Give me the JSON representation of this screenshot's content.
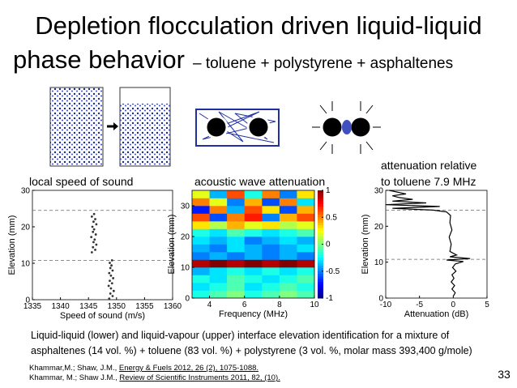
{
  "header": {
    "title_line1": "Depletion flocculation driven liquid-liquid",
    "title_line2": "phase behavior",
    "subtitle": "– toluene + polystyrene + asphaltenes"
  },
  "captions": {
    "left": "local speed of sound",
    "middle": "acoustic wave attenuation",
    "right_line1": "attenuation relative",
    "right_line2": "to toluene 7.9 MHz"
  },
  "chart_data": [
    {
      "type": "scatter",
      "xlabel": "Speed of sound (m/s)",
      "ylabel": "Elevation (mm)",
      "color": "#333333",
      "x": [
        1345.6,
        1346.2,
        1345.8,
        1346.4,
        1345.9,
        1346.1,
        1345.5,
        1346.3,
        1345.8,
        1346.0,
        1345.7,
        1346.4,
        1345.9,
        1346.2,
        1345.6,
        1346.0,
        1348.7,
        1349.3,
        1348.9,
        1349.5,
        1349.0,
        1348.6,
        1349.2,
        1348.8,
        1349.4,
        1349.0,
        1348.7,
        1349.3,
        1348.9,
        1349.1,
        1348.8,
        1349.2
      ],
      "y": [
        13.0,
        13.7,
        14.4,
        15.1,
        15.8,
        16.5,
        17.2,
        17.9,
        18.6,
        19.3,
        20.0,
        20.7,
        21.4,
        22.1,
        22.8,
        23.5,
        0.3,
        1.0,
        1.7,
        2.4,
        3.1,
        3.8,
        4.5,
        5.2,
        5.9,
        6.6,
        7.3,
        8.0,
        8.7,
        9.4,
        10.1,
        10.8
      ],
      "hlines": [
        24.5,
        10.8
      ],
      "xlim": [
        1335,
        1360
      ],
      "ylim": [
        0,
        30
      ],
      "xticks": [
        1335,
        1340,
        1345,
        1350,
        1355,
        1360
      ],
      "yticks": [
        0,
        10,
        20,
        30
      ]
    },
    {
      "type": "heatmap",
      "xlabel": "Frequency (MHz)",
      "ylabel": "Elevation (mm)",
      "x_bins": [
        3,
        4,
        5,
        6,
        7,
        8,
        9,
        10
      ],
      "y_bins": [
        0,
        2.5,
        5,
        7.5,
        10,
        12.5,
        15,
        17.5,
        20,
        22.5,
        25,
        27.5,
        30,
        32.5,
        35
      ],
      "z": [
        [
          -0.2,
          -0.1,
          0,
          -0.2,
          -0.1,
          0,
          -0.1
        ],
        [
          -0.3,
          -0.2,
          -0.1,
          -0.3,
          -0.2,
          -0.1,
          -0.2
        ],
        [
          -0.2,
          -0.3,
          -0.1,
          -0.2,
          -0.3,
          -0.2,
          -0.1
        ],
        [
          -0.4,
          -0.3,
          -0.2,
          -0.3,
          -0.2,
          -0.3,
          -0.2
        ],
        [
          0.9,
          1,
          0.9,
          1,
          0.9,
          1,
          0.9
        ],
        [
          -0.5,
          -0.4,
          -0.5,
          -0.4,
          -0.5,
          -0.4,
          -0.5
        ],
        [
          -0.4,
          -0.5,
          -0.3,
          -0.4,
          -0.5,
          -0.4,
          -0.3
        ],
        [
          -0.3,
          -0.4,
          -0.3,
          -0.5,
          -0.4,
          -0.3,
          -0.4
        ],
        [
          -0.2,
          -0.3,
          -0.1,
          -0.2,
          -0.3,
          -0.2,
          -0.1
        ],
        [
          0.3,
          0.1,
          0.4,
          0.2,
          0.3,
          0.1,
          0.2
        ],
        [
          0.6,
          -0.6,
          0.5,
          0.7,
          -0.5,
          0.4,
          0.6
        ],
        [
          -0.7,
          0.5,
          -0.4,
          0.6,
          0.3,
          -0.6,
          0.4
        ],
        [
          0.5,
          0.2,
          -0.5,
          0.4,
          -0.6,
          0.5,
          -0.3
        ],
        [
          0.2,
          -0.4,
          0.6,
          -0.2,
          0.5,
          -0.5,
          0.3
        ]
      ],
      "xlim": [
        3,
        10
      ],
      "ylim": [
        0,
        35
      ],
      "xticks": [
        4,
        6,
        8,
        10
      ],
      "yticks": [
        0,
        10,
        20,
        30
      ],
      "zlim": [
        -1,
        1
      ],
      "zticks": [
        -1,
        -0.5,
        0,
        0.5,
        1
      ]
    },
    {
      "type": "line",
      "xlabel": "Attenuation (dB)",
      "ylabel": "Elevation (mm)",
      "color": "#000000",
      "x": [
        0,
        0.3,
        -0.2,
        0.2,
        -0.3,
        0.1,
        -0.2,
        0.4,
        -0.1,
        0.3,
        1.5,
        -1,
        2.5,
        -0.5,
        0.5,
        -0.5,
        -0.3,
        -0.6,
        -0.2,
        -0.5,
        -0.4,
        -1,
        -3,
        -9,
        -2,
        -10,
        -4,
        -9,
        -6,
        -8,
        -9,
        -7,
        -9.5
      ],
      "y": [
        0.5,
        1.5,
        2.5,
        3.5,
        4.5,
        5.5,
        6.5,
        7.5,
        8.5,
        9.5,
        10.2,
        10.6,
        11,
        11.5,
        12,
        13,
        15,
        17,
        19,
        21,
        23,
        24,
        24.5,
        25,
        25.5,
        26,
        26.5,
        27,
        27.5,
        28,
        28.5,
        29,
        30
      ],
      "hlines": [
        24.5,
        10.8
      ],
      "xlim": [
        -10,
        5
      ],
      "ylim": [
        0,
        30
      ],
      "xticks": [
        -10,
        -5,
        0,
        5
      ],
      "yticks": [
        0,
        10,
        20,
        30
      ]
    }
  ],
  "footer": {
    "description_line1": "Liquid-liquid (lower) and liquid-vapour (upper) interface elevation identification for a mixture of",
    "description_line2": "asphaltenes (14 vol. %) + toluene (83 vol. %) + polystyrene (3 vol. %, molar mass 393,400 g/mole)",
    "references": [
      {
        "authors": "Khammar,M.; Shaw, J.M., ",
        "source": "Energy & Fuels 2012, 26 (2), 1075-1088."
      },
      {
        "authors": "Khammar, M.; Shaw J.M., ",
        "source": "Review of Scientific Instruments 2011, 82, (10)."
      }
    ],
    "page_number": "33"
  }
}
